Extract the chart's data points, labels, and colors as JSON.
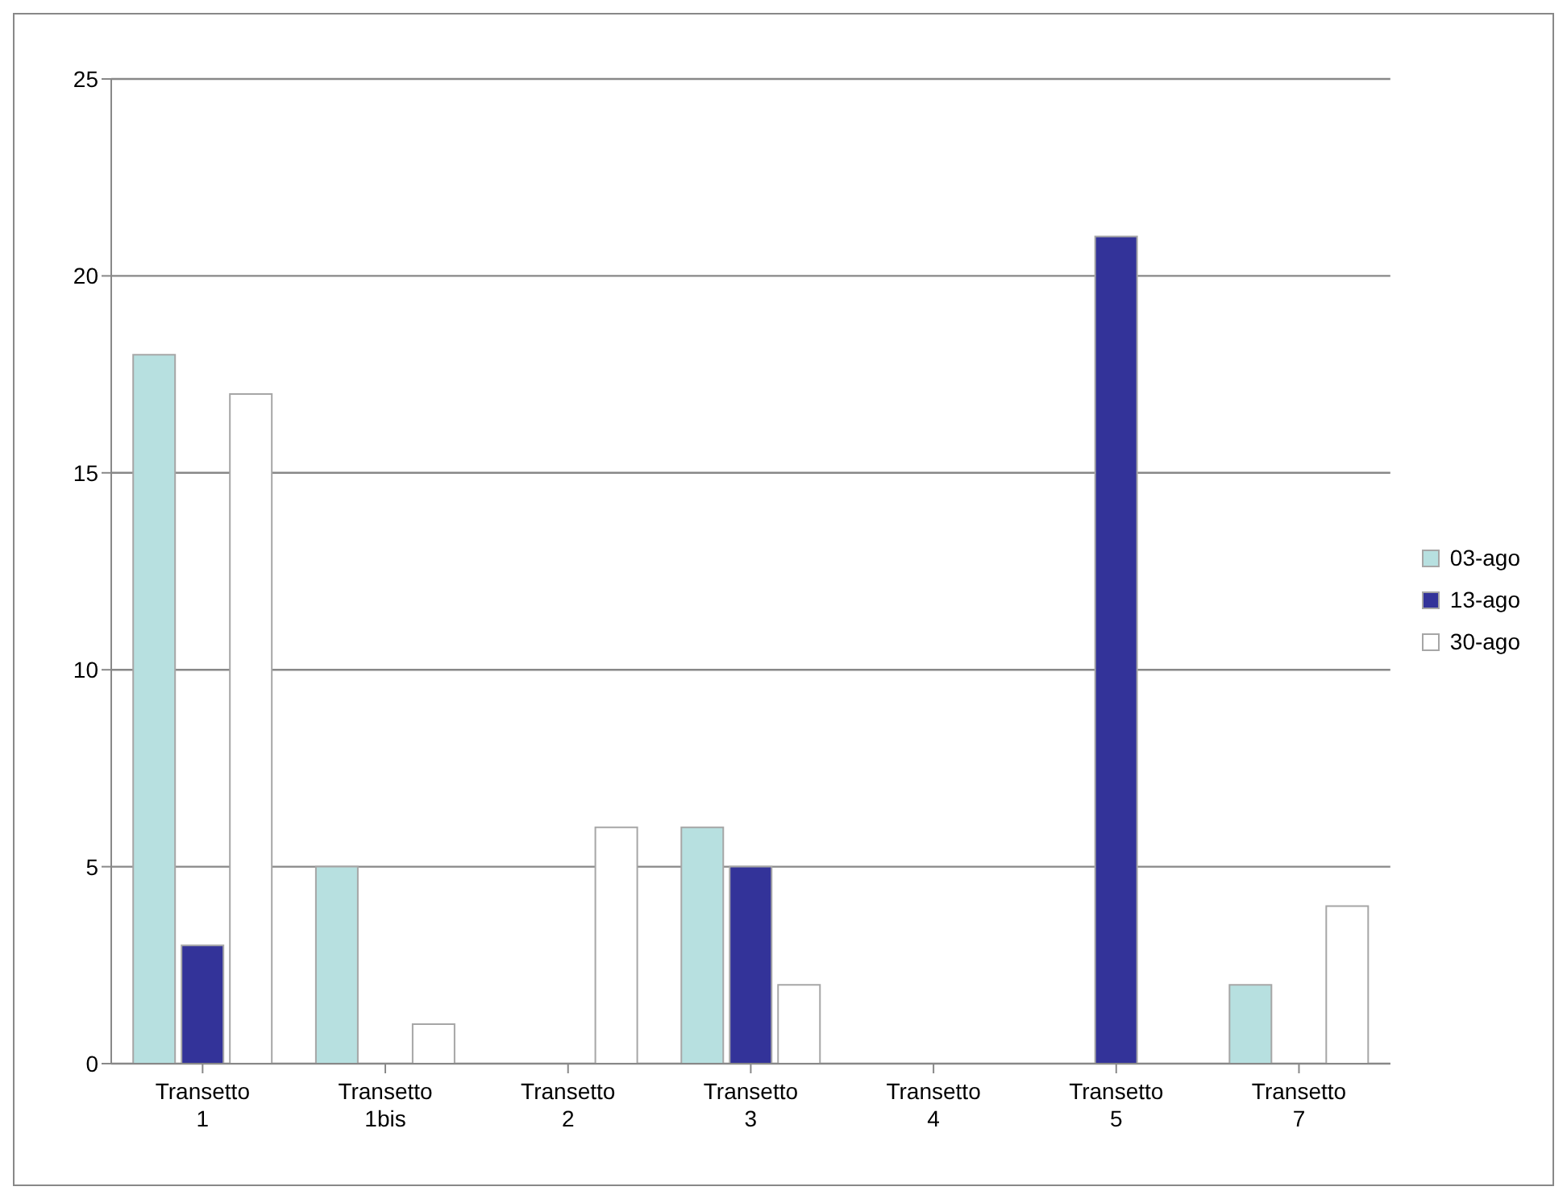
{
  "chart_data": {
    "type": "bar",
    "categories": [
      "Transetto 1",
      "Transetto 1bis",
      "Transetto 2",
      "Transetto 3",
      "Transetto 4",
      "Transetto 5",
      "Transetto 7"
    ],
    "series": [
      {
        "name": "03-ago",
        "color": "#b7e0e0",
        "values": [
          18,
          5,
          0,
          6,
          0,
          0,
          2
        ]
      },
      {
        "name": "13-ago",
        "color": "#333399",
        "values": [
          3,
          0,
          0,
          5,
          0,
          21,
          0
        ]
      },
      {
        "name": "30-ago",
        "color": "#ffffff",
        "values": [
          17,
          1,
          6,
          2,
          0,
          0,
          4
        ]
      }
    ],
    "ylim": [
      0,
      25
    ],
    "yticks": [
      0,
      5,
      10,
      15,
      20,
      25
    ],
    "grid": "y",
    "legend": "right"
  }
}
